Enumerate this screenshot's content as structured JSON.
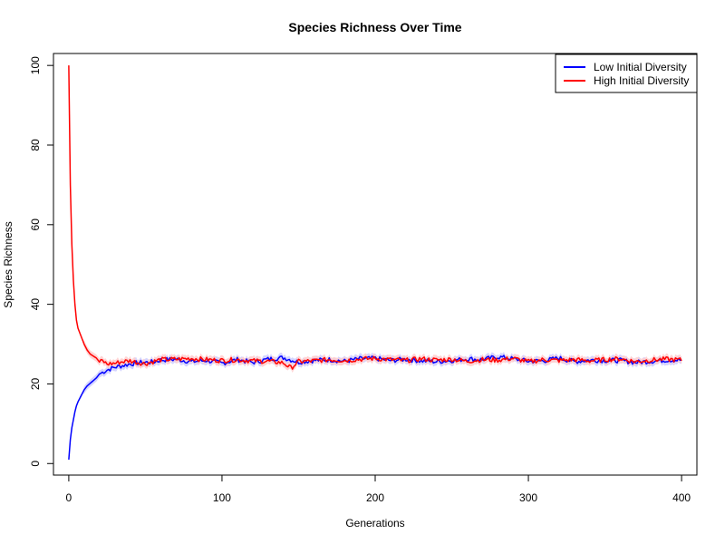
{
  "chart_data": {
    "type": "line",
    "title": "Species Richness Over Time",
    "xlabel": "Generations",
    "ylabel": "Species Richness",
    "xlim": [
      -10,
      410
    ],
    "ylim": [
      -2.9,
      103
    ],
    "xticks": [
      0,
      100,
      200,
      300,
      400
    ],
    "yticks": [
      0,
      20,
      40,
      60,
      80,
      100
    ],
    "legend_position": "top-right",
    "grid": false,
    "series": [
      {
        "name": "Low Initial Diversity",
        "color": "#0000ff",
        "band_color": "#ccccff",
        "x": [
          0,
          1,
          2,
          3,
          4,
          5,
          6,
          8,
          10,
          12,
          15,
          18,
          20,
          25,
          30,
          35,
          40,
          45,
          50,
          55,
          60,
          70,
          80,
          90,
          100,
          110,
          120,
          130,
          140,
          150,
          160,
          170,
          180,
          190,
          200,
          210,
          220,
          230,
          240,
          250,
          260,
          270,
          280,
          290,
          300,
          310,
          320,
          330,
          340,
          350,
          360,
          370,
          380,
          390,
          400
        ],
        "y": [
          1,
          6,
          9,
          11,
          13,
          14.5,
          15.5,
          17,
          18.5,
          19.5,
          20.5,
          21.5,
          22.5,
          23.5,
          24.2,
          24.6,
          25,
          25.3,
          25.4,
          25.5,
          26,
          26.2,
          25.6,
          25.9,
          25.2,
          26.1,
          25.4,
          26.2,
          26.6,
          25.5,
          25.9,
          26.1,
          25.7,
          26.3,
          26.4,
          25.9,
          26.2,
          25.8,
          25.6,
          25.9,
          26.3,
          26.1,
          26.8,
          26.3,
          25.7,
          25.8,
          26.5,
          25.6,
          26,
          25.9,
          25.9,
          25.4,
          25.7,
          26,
          26
        ]
      },
      {
        "name": "High Initial Diversity",
        "color": "#ff0000",
        "band_color": "#ffcccc",
        "x": [
          0,
          1,
          2,
          3,
          4,
          5,
          6,
          7,
          8,
          10,
          12,
          14,
          16,
          18,
          20,
          22,
          25,
          30,
          35,
          40,
          45,
          50,
          55,
          60,
          70,
          80,
          90,
          100,
          110,
          120,
          130,
          140,
          145,
          150,
          160,
          170,
          180,
          190,
          200,
          210,
          220,
          230,
          240,
          250,
          260,
          270,
          280,
          290,
          300,
          310,
          320,
          330,
          340,
          350,
          360,
          370,
          380,
          390,
          400
        ],
        "y": [
          100,
          70,
          55,
          46,
          40,
          36,
          34,
          33,
          32,
          30,
          28.5,
          27.5,
          27,
          26.5,
          25.5,
          25.8,
          25,
          25.2,
          25.6,
          25.8,
          25.4,
          25.1,
          25.6,
          26.1,
          26.2,
          26.4,
          26.1,
          25.9,
          26.1,
          25.8,
          25.7,
          25.3,
          24,
          25.6,
          25.8,
          26.1,
          25.9,
          26.2,
          26.4,
          26.1,
          25.9,
          26.3,
          26,
          26.2,
          25.7,
          26.1,
          26,
          26.4,
          25.6,
          26.1,
          25.9,
          26.1,
          25.8,
          26.1,
          26.3,
          25.6,
          26,
          26.2,
          26
        ]
      }
    ]
  }
}
